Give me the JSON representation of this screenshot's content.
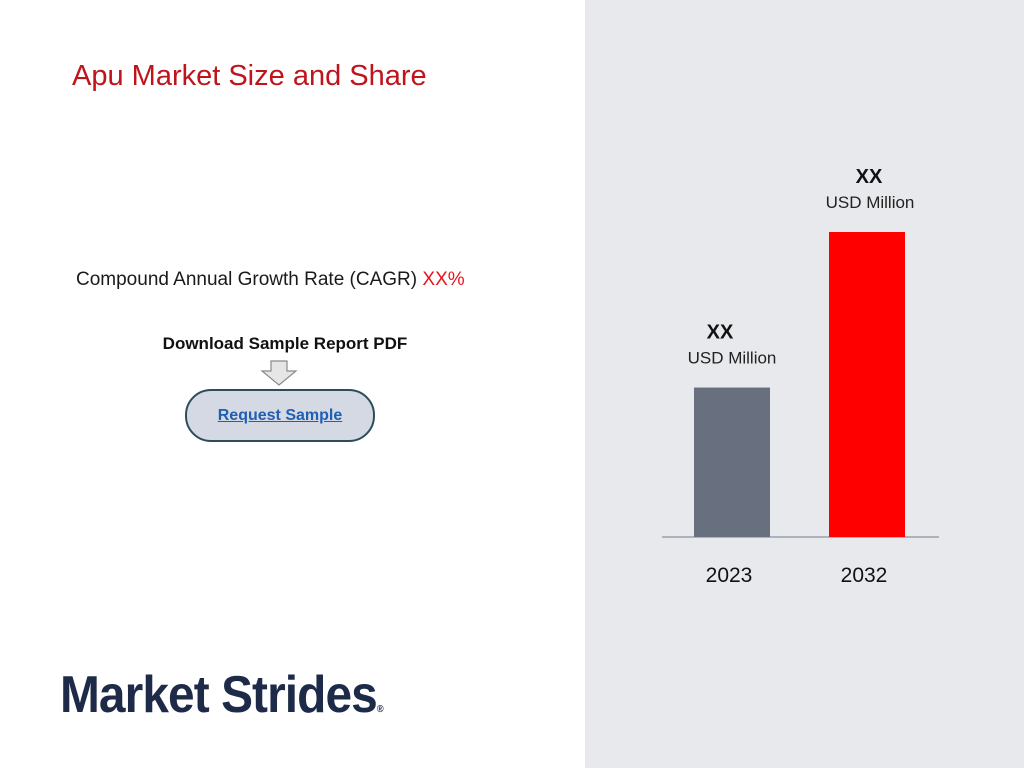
{
  "page": {
    "title": "Apu Market Size and Share",
    "cagr_label": "Compound Annual Growth Rate (CAGR)",
    "cagr_value": "XX%",
    "download_label": "Download Sample Report PDF",
    "request_button": "Request Sample",
    "logo_text": "Market Strides",
    "logo_mark": "®"
  },
  "colors": {
    "title": "#c0141c",
    "right_panel_bg": "#e8e9ec",
    "bar_2023": "#686f7e",
    "bar_2032": "#ff0000",
    "baseline": "#9aa0ab"
  },
  "chart_data": {
    "type": "bar",
    "categories": [
      "2023",
      "2032"
    ],
    "values": [
      49,
      100
    ],
    "value_labels": [
      "XX",
      "XX"
    ],
    "unit_labels": [
      "USD Million",
      "USD Million"
    ],
    "ylim": [
      0,
      100
    ],
    "grid": false,
    "legend": "none"
  }
}
